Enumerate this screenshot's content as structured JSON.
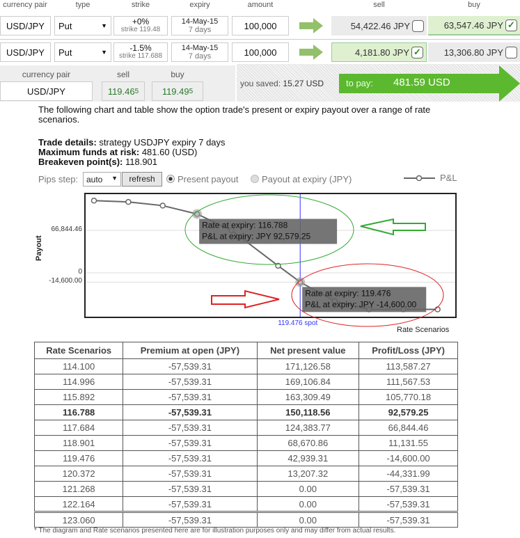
{
  "columns": {
    "currency_pair": "currency pair",
    "type": "type",
    "strike": "strike",
    "expiry": "expiry",
    "amount": "amount",
    "sell": "sell",
    "buy": "buy"
  },
  "legs": [
    {
      "pair": "USD/JPY",
      "type": "Put",
      "strike_pct": "+0%",
      "strike": "strike 119.48",
      "expiry_date": "14-May-15",
      "expiry_days": "7 days",
      "amount": "100,000",
      "sell": "54,422.46 JPY",
      "sell_checked": false,
      "buy": "63,547.46 JPY",
      "buy_checked": true
    },
    {
      "pair": "USD/JPY",
      "type": "Put",
      "strike_pct": "-1.5%",
      "strike": "strike 117.688",
      "expiry_date": "14-May-15",
      "expiry_days": "7 days",
      "amount": "100,000",
      "sell": "4,181.80 JPY",
      "sell_checked": true,
      "buy": "13,306.80 JPY",
      "buy_checked": false
    }
  ],
  "quote": {
    "pair_label": "currency pair",
    "sell_label": "sell",
    "buy_label": "buy",
    "pair": "USD/JPY",
    "sell": "119.46",
    "sell_pip": "5",
    "buy": "119.49",
    "buy_pip": "5"
  },
  "summary": {
    "saved_label": "you saved:",
    "saved": "15.27 USD",
    "pay_label": "to pay:",
    "pay": "481.59 USD"
  },
  "intro": "The following chart and table show the option trade's present or expiry payout over a range of rate scenarios.",
  "details": {
    "trade_label": "Trade details:",
    "trade": " strategy USDJPY expiry 7 days",
    "risk_label": "Maximum funds at risk:",
    "risk": " 481.60 (USD)",
    "breakeven_label": "Breakeven point(s):",
    "breakeven": " 118.901"
  },
  "controls": {
    "pips_label": "Pips step:",
    "pips_value": "auto",
    "refresh": "refresh",
    "present": "Present payout",
    "expiry": "Payout at expiry (JPY)",
    "present_selected": true,
    "legend": "P&L"
  },
  "colors": {
    "accent_green": "#5cb82e",
    "selected_bg": "#dff0d0",
    "spot_line": "#3333ff"
  },
  "chart_data": {
    "type": "line",
    "ylabel": "Payout",
    "xlabel": "Rate Scenarios",
    "yticks": [
      "66,844.46",
      "0",
      "-14,600.00"
    ],
    "ytick_values": [
      66844.46,
      0,
      -14600
    ],
    "spot_label": "119.476 spot",
    "spot": 119.476,
    "series": [
      {
        "name": "P&L",
        "x": [
          114.1,
          114.996,
          115.892,
          116.788,
          117.684,
          118.901,
          119.476,
          120.372,
          121.268,
          122.164,
          123.06
        ],
        "values": [
          113587.27,
          111567.53,
          105770.18,
          92579.25,
          66844.46,
          11131.55,
          -14600,
          -44331.99,
          -57539.31,
          -57539.31,
          -57539.31
        ]
      }
    ],
    "tooltips": [
      {
        "line1": "Rate at expiry: 116.788",
        "line2": "P&L at expiry: JPY 92,579.25",
        "x": 116.788,
        "y": 92579.25
      },
      {
        "line1": "Rate at expiry: 119.476",
        "line2": "P&L at expiry: JPY -14,600.00",
        "x": 119.476,
        "y": -14600
      }
    ]
  },
  "table": {
    "headers": [
      "Rate Scenarios",
      "Premium at open (JPY)",
      "Net present value",
      "Profit/Loss (JPY)"
    ],
    "rows": [
      [
        "114.100",
        "-57,539.31",
        "171,126.58",
        "113,587.27"
      ],
      [
        "114.996",
        "-57,539.31",
        "169,106.84",
        "111,567.53"
      ],
      [
        "115.892",
        "-57,539.31",
        "163,309.49",
        "105,770.18"
      ],
      [
        "116.788",
        "-57,539.31",
        "150,118.56",
        "92,579.25"
      ],
      [
        "117.684",
        "-57,539.31",
        "124,383.77",
        "66,844.46"
      ],
      [
        "118.901",
        "-57,539.31",
        "68,670.86",
        "11,131.55"
      ],
      [
        "119.476",
        "-57,539.31",
        "42,939.31",
        "-14,600.00"
      ],
      [
        "120.372",
        "-57,539.31",
        "13,207.32",
        "-44,331.99"
      ],
      [
        "121.268",
        "-57,539.31",
        "0.00",
        "-57,539.31"
      ],
      [
        "122.164",
        "-57,539.31",
        "0.00",
        "-57,539.31"
      ],
      [
        "123.060",
        "-57,539.31",
        "0.00",
        "-57,539.31"
      ]
    ],
    "bold_row": 3
  },
  "footnote": "* The diagram and Rate scenarios presented here are for illustration purposes only and may differ from actual results."
}
